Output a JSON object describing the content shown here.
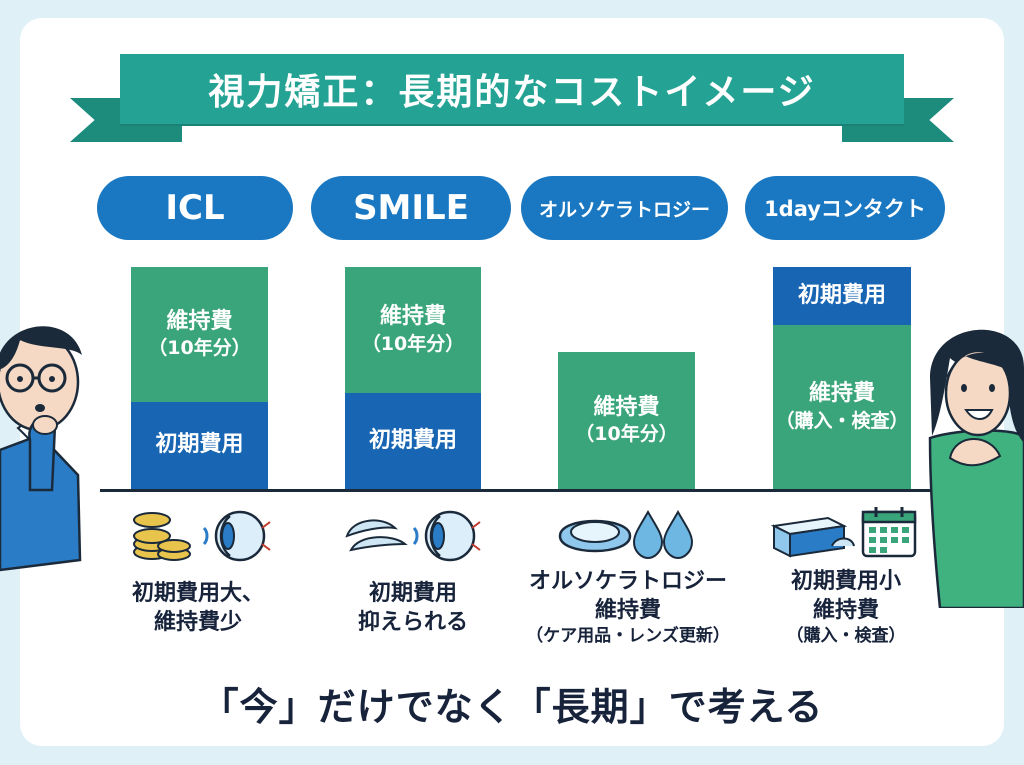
{
  "title": "視力矯正：長期的なコストイメージ",
  "columns": [
    {
      "name": "ICL",
      "bars": {
        "top": {
          "label": "維持費",
          "sub": "（10年分）"
        },
        "bottom": {
          "label": "初期費用"
        }
      },
      "caption": {
        "lines": [
          "初期費用大、",
          "維持費少"
        ]
      },
      "icons": [
        "coins-icon",
        "eye-icon"
      ]
    },
    {
      "name": "SMILE",
      "bars": {
        "top": {
          "label": "維持費",
          "sub": "（10年分）"
        },
        "bottom": {
          "label": "初期費用"
        }
      },
      "caption": {
        "lines": [
          "初期費用",
          "抑えられる"
        ]
      },
      "icons": [
        "contact-lens-icon",
        "eye-icon"
      ]
    },
    {
      "name": "オルソケラトロジー",
      "bars": {
        "top": {
          "label": "維持費",
          "sub": "（10年分）"
        }
      },
      "caption": {
        "lines": [
          "オルソケラトロジー",
          "維持費"
        ],
        "sub": "（ケア用品・レンズ更新）"
      },
      "icons": [
        "lens-case-icon",
        "drops-icon"
      ]
    },
    {
      "name": "1dayコンタクト",
      "bars": {
        "top": {
          "label": "初期費用"
        },
        "bottom": {
          "label": "維持費",
          "sub": "（購入・検査）"
        }
      },
      "caption": {
        "lines": [
          "初期費用小",
          "維持費"
        ],
        "sub": "（購入・検査）"
      },
      "icons": [
        "lens-box-icon",
        "calendar-icon"
      ]
    }
  ],
  "footer": "「今」だけでなく「長期」で考える",
  "colors": {
    "background": "#dff0f6",
    "ribbon": "#24a394",
    "pill": "#1a78c2",
    "maintenance": "#3aa57a",
    "initial": "#1866b3",
    "text": "#17233a"
  }
}
